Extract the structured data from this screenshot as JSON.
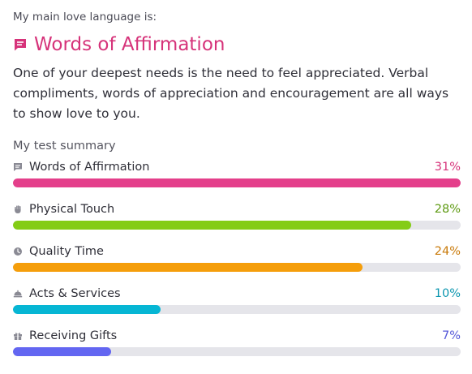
{
  "intro_label": "My main love language is:",
  "main": {
    "icon": "chat-bubble-icon",
    "title": "Words of Affirmation",
    "color": "#d6337a",
    "description": "One of your deepest needs is the need to feel appreciated. Verbal compliments, words of appreciation and encouragement are all ways to show love to you."
  },
  "summary_label": "My test summary",
  "results": [
    {
      "label": "Words of Affirmation",
      "percent_text": "31%",
      "fill_fraction": 1.0,
      "color": "#e43f8b",
      "pct_color": "#d6337a",
      "icon": "chat-bubble-icon"
    },
    {
      "label": "Physical Touch",
      "percent_text": "28%",
      "fill_fraction": 0.89,
      "color": "#84cc16",
      "pct_color": "#5e9a12",
      "icon": "hand-icon"
    },
    {
      "label": "Quality Time",
      "percent_text": "24%",
      "fill_fraction": 0.78,
      "color": "#f59e0b",
      "pct_color": "#c97a0a",
      "icon": "clock-icon"
    },
    {
      "label": "Acts & Services",
      "percent_text": "10%",
      "fill_fraction": 0.33,
      "color": "#06b6d4",
      "pct_color": "#0e97b0",
      "icon": "service-bell-icon"
    },
    {
      "label": "Receiving Gifts",
      "percent_text": "7%",
      "fill_fraction": 0.22,
      "color": "#6366f1",
      "pct_color": "#5558d9",
      "icon": "gift-icon"
    }
  ],
  "colors": {
    "icon_gray": "#8a8a94",
    "track": "#e5e5ea"
  }
}
